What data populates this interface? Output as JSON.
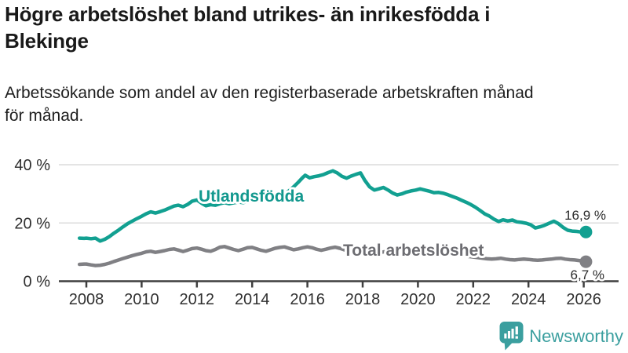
{
  "header": {
    "title_line1": "Högre arbetslöshet bland utrikes- än inrikesfödda i",
    "title_line2": "Blekinge",
    "subtitle_line1": "Arbetssökande som andel av den registerbaserade arbetskraften månad",
    "subtitle_line2": "för månad."
  },
  "footer": {
    "brand": "Newsworthy"
  },
  "colors": {
    "accent_teal": "#12a091",
    "line_gray": "#808084",
    "logo_teal": "#3b9f9f",
    "axis": "#3f3f3f",
    "grid": "#dcdcdc",
    "tick_label": "#2f2f2f",
    "end_label": "#2b2b2b"
  },
  "chart_data": {
    "type": "line",
    "title": "Högre arbetslöshet bland utrikes- än inrikesfödda i Blekinge",
    "subtitle": "Arbetssökande som andel av den registerbaserade arbetskraften månad för månad.",
    "grid": "horizontal",
    "x_ticks": [
      "2008",
      "2010",
      "2012",
      "2014",
      "2016",
      "2018",
      "2020",
      "2022",
      "2024",
      "2026"
    ],
    "y_ticks": [
      {
        "value": 0,
        "label": "0 %"
      },
      {
        "value": 20,
        "label": "20 %"
      },
      {
        "value": 40,
        "label": "40 %"
      }
    ],
    "x_range": [
      2007.75,
      2026.08
    ],
    "y_range": [
      0,
      42
    ],
    "series": [
      {
        "id": "utlandsfodda",
        "name": "Utlandsfödda",
        "color": "#12a091",
        "label_color": "#12988e",
        "end_label": "16,9 %",
        "end_value": 16.9,
        "points": [
          [
            2007.75,
            14.8
          ],
          [
            2007.92,
            14.7
          ],
          [
            2008.0,
            14.8
          ],
          [
            2008.17,
            14.6
          ],
          [
            2008.33,
            14.8
          ],
          [
            2008.5,
            13.8
          ],
          [
            2008.67,
            14.4
          ],
          [
            2008.83,
            15.3
          ],
          [
            2009.0,
            16.5
          ],
          [
            2009.17,
            17.6
          ],
          [
            2009.33,
            18.7
          ],
          [
            2009.5,
            19.8
          ],
          [
            2009.67,
            20.7
          ],
          [
            2009.83,
            21.5
          ],
          [
            2010.0,
            22.3
          ],
          [
            2010.17,
            23.2
          ],
          [
            2010.33,
            23.8
          ],
          [
            2010.5,
            23.4
          ],
          [
            2010.67,
            23.9
          ],
          [
            2010.83,
            24.4
          ],
          [
            2011.0,
            25.1
          ],
          [
            2011.17,
            25.8
          ],
          [
            2011.33,
            26.1
          ],
          [
            2011.5,
            25.6
          ],
          [
            2011.67,
            26.4
          ],
          [
            2011.83,
            27.5
          ],
          [
            2012.0,
            27.9
          ],
          [
            2012.17,
            26.8
          ],
          [
            2012.33,
            25.9
          ],
          [
            2012.5,
            26.3
          ],
          [
            2012.67,
            26.1
          ],
          [
            2012.83,
            26.6
          ],
          [
            2013.0,
            27.0
          ],
          [
            2013.17,
            26.6
          ],
          [
            2013.33,
            26.9
          ],
          [
            2013.5,
            27.2
          ],
          [
            2013.67,
            27.0
          ],
          [
            2013.83,
            27.4
          ],
          [
            2014.0,
            27.7
          ],
          [
            2014.17,
            27.4
          ],
          [
            2014.33,
            27.8
          ],
          [
            2014.5,
            28.1
          ],
          [
            2014.67,
            28.4
          ],
          [
            2014.83,
            28.8
          ],
          [
            2015.0,
            29.4
          ],
          [
            2015.17,
            30.0
          ],
          [
            2015.33,
            31.0
          ],
          [
            2015.5,
            32.4
          ],
          [
            2015.67,
            34.0
          ],
          [
            2015.83,
            35.6
          ],
          [
            2015.92,
            36.4
          ],
          [
            2016.08,
            35.5
          ],
          [
            2016.25,
            35.9
          ],
          [
            2016.42,
            36.2
          ],
          [
            2016.58,
            36.6
          ],
          [
            2016.75,
            37.3
          ],
          [
            2016.92,
            37.9
          ],
          [
            2017.08,
            37.2
          ],
          [
            2017.25,
            36.0
          ],
          [
            2017.42,
            35.4
          ],
          [
            2017.58,
            36.1
          ],
          [
            2017.75,
            36.7
          ],
          [
            2017.92,
            37.2
          ],
          [
            2018.08,
            34.6
          ],
          [
            2018.25,
            32.4
          ],
          [
            2018.42,
            31.3
          ],
          [
            2018.58,
            31.7
          ],
          [
            2018.75,
            32.2
          ],
          [
            2018.92,
            31.3
          ],
          [
            2019.08,
            30.3
          ],
          [
            2019.25,
            29.6
          ],
          [
            2019.42,
            30.0
          ],
          [
            2019.58,
            30.6
          ],
          [
            2019.75,
            31.0
          ],
          [
            2019.92,
            31.3
          ],
          [
            2020.08,
            31.7
          ],
          [
            2020.25,
            31.3
          ],
          [
            2020.42,
            30.9
          ],
          [
            2020.58,
            30.4
          ],
          [
            2020.75,
            30.5
          ],
          [
            2020.92,
            30.2
          ],
          [
            2021.08,
            29.7
          ],
          [
            2021.25,
            29.1
          ],
          [
            2021.42,
            28.5
          ],
          [
            2021.58,
            27.8
          ],
          [
            2021.75,
            27.1
          ],
          [
            2021.92,
            26.3
          ],
          [
            2022.08,
            25.4
          ],
          [
            2022.25,
            24.3
          ],
          [
            2022.42,
            23.1
          ],
          [
            2022.58,
            22.4
          ],
          [
            2022.75,
            21.3
          ],
          [
            2022.92,
            20.5
          ],
          [
            2023.08,
            21.1
          ],
          [
            2023.25,
            20.7
          ],
          [
            2023.42,
            21.0
          ],
          [
            2023.58,
            20.4
          ],
          [
            2023.75,
            20.2
          ],
          [
            2023.92,
            19.9
          ],
          [
            2024.08,
            19.4
          ],
          [
            2024.25,
            18.3
          ],
          [
            2024.42,
            18.7
          ],
          [
            2024.58,
            19.2
          ],
          [
            2024.75,
            19.9
          ],
          [
            2024.92,
            20.6
          ],
          [
            2025.08,
            19.8
          ],
          [
            2025.25,
            18.5
          ],
          [
            2025.42,
            17.5
          ],
          [
            2025.58,
            17.2
          ],
          [
            2025.75,
            17.1
          ],
          [
            2025.92,
            16.9
          ],
          [
            2026.08,
            16.9
          ]
        ]
      },
      {
        "id": "total-arbetsloshet",
        "name": "Total arbetslöshet",
        "color": "#808084",
        "label_color": "#6d6d72",
        "end_label": "6,7 %",
        "end_value": 6.7,
        "points": [
          [
            2007.75,
            5.8
          ],
          [
            2007.92,
            5.9
          ],
          [
            2008.0,
            5.9
          ],
          [
            2008.17,
            5.6
          ],
          [
            2008.33,
            5.4
          ],
          [
            2008.5,
            5.5
          ],
          [
            2008.67,
            5.8
          ],
          [
            2008.83,
            6.2
          ],
          [
            2009.0,
            6.8
          ],
          [
            2009.17,
            7.3
          ],
          [
            2009.33,
            7.8
          ],
          [
            2009.5,
            8.3
          ],
          [
            2009.67,
            8.8
          ],
          [
            2009.83,
            9.2
          ],
          [
            2010.0,
            9.6
          ],
          [
            2010.17,
            10.1
          ],
          [
            2010.33,
            10.3
          ],
          [
            2010.5,
            9.9
          ],
          [
            2010.67,
            10.2
          ],
          [
            2010.83,
            10.5
          ],
          [
            2011.0,
            10.9
          ],
          [
            2011.17,
            11.1
          ],
          [
            2011.33,
            10.7
          ],
          [
            2011.5,
            10.2
          ],
          [
            2011.67,
            10.7
          ],
          [
            2011.83,
            11.2
          ],
          [
            2012.0,
            11.4
          ],
          [
            2012.17,
            11.0
          ],
          [
            2012.33,
            10.5
          ],
          [
            2012.5,
            10.3
          ],
          [
            2012.67,
            10.9
          ],
          [
            2012.83,
            11.7
          ],
          [
            2013.0,
            11.9
          ],
          [
            2013.17,
            11.4
          ],
          [
            2013.33,
            10.9
          ],
          [
            2013.5,
            10.5
          ],
          [
            2013.67,
            11.0
          ],
          [
            2013.83,
            11.5
          ],
          [
            2014.0,
            11.6
          ],
          [
            2014.17,
            11.1
          ],
          [
            2014.33,
            10.6
          ],
          [
            2014.5,
            10.3
          ],
          [
            2014.67,
            10.8
          ],
          [
            2014.83,
            11.3
          ],
          [
            2015.0,
            11.6
          ],
          [
            2015.17,
            11.8
          ],
          [
            2015.33,
            11.3
          ],
          [
            2015.5,
            10.8
          ],
          [
            2015.67,
            11.1
          ],
          [
            2015.83,
            11.5
          ],
          [
            2016.0,
            11.8
          ],
          [
            2016.17,
            11.5
          ],
          [
            2016.33,
            11.0
          ],
          [
            2016.5,
            10.6
          ],
          [
            2016.67,
            11.0
          ],
          [
            2016.83,
            11.4
          ],
          [
            2017.0,
            11.7
          ],
          [
            2017.17,
            11.3
          ],
          [
            2017.33,
            10.8
          ],
          [
            2017.5,
            10.4
          ],
          [
            2017.67,
            10.7
          ],
          [
            2017.83,
            11.0
          ],
          [
            2018.0,
            10.9
          ],
          [
            2018.17,
            10.5
          ],
          [
            2018.33,
            10.1
          ],
          [
            2018.5,
            9.7
          ],
          [
            2018.67,
            9.9
          ],
          [
            2018.83,
            10.2
          ],
          [
            2019.0,
            10.1
          ],
          [
            2019.17,
            9.8
          ],
          [
            2019.33,
            9.5
          ],
          [
            2019.5,
            9.3
          ],
          [
            2019.67,
            9.6
          ],
          [
            2019.83,
            9.9
          ],
          [
            2020.0,
            10.2
          ],
          [
            2020.17,
            10.7
          ],
          [
            2020.33,
            11.1
          ],
          [
            2020.5,
            11.0
          ],
          [
            2020.67,
            10.7
          ],
          [
            2020.83,
            10.4
          ],
          [
            2021.0,
            10.2
          ],
          [
            2021.17,
            9.9
          ],
          [
            2021.33,
            9.5
          ],
          [
            2021.5,
            9.1
          ],
          [
            2021.67,
            8.8
          ],
          [
            2021.83,
            8.5
          ],
          [
            2022.0,
            8.3
          ],
          [
            2022.17,
            8.1
          ],
          [
            2022.33,
            7.9
          ],
          [
            2022.5,
            7.7
          ],
          [
            2022.67,
            7.6
          ],
          [
            2022.83,
            7.7
          ],
          [
            2023.0,
            7.9
          ],
          [
            2023.17,
            7.6
          ],
          [
            2023.33,
            7.4
          ],
          [
            2023.5,
            7.3
          ],
          [
            2023.67,
            7.5
          ],
          [
            2023.83,
            7.6
          ],
          [
            2024.0,
            7.5
          ],
          [
            2024.17,
            7.3
          ],
          [
            2024.33,
            7.2
          ],
          [
            2024.5,
            7.3
          ],
          [
            2024.67,
            7.5
          ],
          [
            2024.83,
            7.6
          ],
          [
            2025.0,
            7.8
          ],
          [
            2025.17,
            7.9
          ],
          [
            2025.33,
            7.6
          ],
          [
            2025.5,
            7.4
          ],
          [
            2025.67,
            7.3
          ],
          [
            2025.83,
            7.1
          ],
          [
            2026.0,
            6.9
          ],
          [
            2026.08,
            6.7
          ]
        ]
      }
    ]
  }
}
